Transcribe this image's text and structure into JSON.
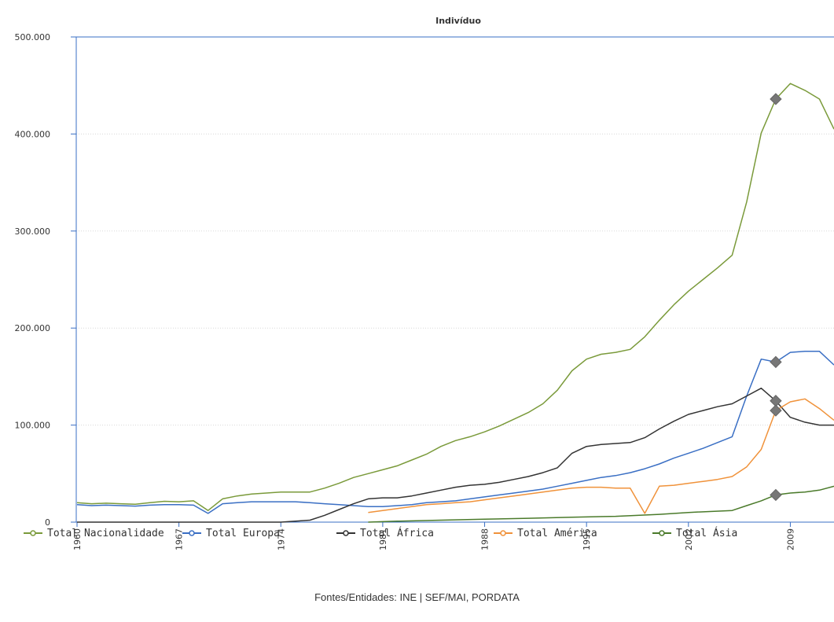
{
  "chart_data": {
    "type": "line",
    "title": "Indivíduo",
    "xlabel": "",
    "ylabel": "",
    "ylim": [
      0,
      500000
    ],
    "xlim": [
      1960,
      2012
    ],
    "y_ticks": [
      0,
      100000,
      200000,
      300000,
      400000,
      500000
    ],
    "y_tick_labels": [
      "0",
      "100.000",
      "200.000",
      "300.000",
      "400.000",
      "500.000"
    ],
    "x_ticks": [
      1960,
      1967,
      1974,
      1981,
      1988,
      1995,
      2002,
      2009
    ],
    "x_tick_labels": [
      "1960",
      "1967",
      "1974",
      "1981",
      "1988",
      "1995",
      "2002",
      "2009"
    ],
    "grid": true,
    "legend_position": "bottom",
    "highlight_year": 2008,
    "series": [
      {
        "name": "Total Nacionalidade",
        "color": "#7a9a3a",
        "points": [
          [
            1960,
            20000
          ],
          [
            1961,
            19000
          ],
          [
            1962,
            19500
          ],
          [
            1963,
            19000
          ],
          [
            1964,
            18500
          ],
          [
            1965,
            20000
          ],
          [
            1966,
            21500
          ],
          [
            1967,
            21000
          ],
          [
            1968,
            22000
          ],
          [
            1969,
            12000
          ],
          [
            1970,
            24000
          ],
          [
            1971,
            27000
          ],
          [
            1972,
            29000
          ],
          [
            1973,
            30000
          ],
          [
            1974,
            31000
          ],
          [
            1975,
            31000
          ],
          [
            1976,
            31000
          ],
          [
            1977,
            35000
          ],
          [
            1978,
            40000
          ],
          [
            1979,
            46000
          ],
          [
            1980,
            50000
          ],
          [
            1981,
            54000
          ],
          [
            1982,
            58000
          ],
          [
            1983,
            64000
          ],
          [
            1984,
            70000
          ],
          [
            1985,
            78000
          ],
          [
            1986,
            84000
          ],
          [
            1987,
            88000
          ],
          [
            1988,
            93000
          ],
          [
            1989,
            99000
          ],
          [
            1990,
            106000
          ],
          [
            1991,
            113000
          ],
          [
            1992,
            122000
          ],
          [
            1993,
            136000
          ],
          [
            1994,
            156000
          ],
          [
            1995,
            168000
          ],
          [
            1996,
            173000
          ],
          [
            1997,
            175000
          ],
          [
            1998,
            178000
          ],
          [
            1999,
            191000
          ],
          [
            2000,
            208000
          ],
          [
            2001,
            224000
          ],
          [
            2002,
            238000
          ],
          [
            2003,
            250000
          ],
          [
            2004,
            262000
          ],
          [
            2005,
            275000
          ],
          [
            2006,
            330000
          ],
          [
            2007,
            401000
          ],
          [
            2008,
            436000
          ],
          [
            2009,
            452000
          ],
          [
            2010,
            445000
          ],
          [
            2011,
            436000
          ],
          [
            2012,
            405000
          ]
        ]
      },
      {
        "name": "Total Europa",
        "color": "#3a6fc4",
        "points": [
          [
            1960,
            18000
          ],
          [
            1961,
            17000
          ],
          [
            1962,
            17500
          ],
          [
            1963,
            17000
          ],
          [
            1964,
            16500
          ],
          [
            1965,
            17500
          ],
          [
            1966,
            18000
          ],
          [
            1967,
            18000
          ],
          [
            1968,
            17500
          ],
          [
            1969,
            9000
          ],
          [
            1970,
            19000
          ],
          [
            1971,
            20000
          ],
          [
            1972,
            21000
          ],
          [
            1973,
            21000
          ],
          [
            1974,
            21000
          ],
          [
            1975,
            21000
          ],
          [
            1976,
            20000
          ],
          [
            1977,
            19000
          ],
          [
            1978,
            18000
          ],
          [
            1979,
            17000
          ],
          [
            1980,
            16000
          ],
          [
            1981,
            16000
          ],
          [
            1982,
            17000
          ],
          [
            1983,
            18000
          ],
          [
            1984,
            20000
          ],
          [
            1985,
            21000
          ],
          [
            1986,
            22000
          ],
          [
            1987,
            24000
          ],
          [
            1988,
            26000
          ],
          [
            1989,
            28000
          ],
          [
            1990,
            30000
          ],
          [
            1991,
            32000
          ],
          [
            1992,
            34000
          ],
          [
            1993,
            37000
          ],
          [
            1994,
            40000
          ],
          [
            1995,
            43000
          ],
          [
            1996,
            46000
          ],
          [
            1997,
            48000
          ],
          [
            1998,
            51000
          ],
          [
            1999,
            55000
          ],
          [
            2000,
            60000
          ],
          [
            2001,
            66000
          ],
          [
            2002,
            71000
          ],
          [
            2003,
            76000
          ],
          [
            2004,
            82000
          ],
          [
            2005,
            88000
          ],
          [
            2006,
            130000
          ],
          [
            2007,
            168000
          ],
          [
            2008,
            165000
          ],
          [
            2009,
            175000
          ],
          [
            2010,
            176000
          ],
          [
            2011,
            176000
          ],
          [
            2012,
            162000
          ]
        ]
      },
      {
        "name": "Total África",
        "color": "#333333",
        "points": [
          [
            1960,
            0
          ],
          [
            1961,
            0
          ],
          [
            1962,
            0
          ],
          [
            1963,
            0
          ],
          [
            1964,
            0
          ],
          [
            1965,
            0
          ],
          [
            1966,
            0
          ],
          [
            1967,
            0
          ],
          [
            1968,
            0
          ],
          [
            1969,
            0
          ],
          [
            1970,
            0
          ],
          [
            1971,
            0
          ],
          [
            1972,
            0
          ],
          [
            1973,
            0
          ],
          [
            1974,
            0
          ],
          [
            1975,
            1000
          ],
          [
            1976,
            2000
          ],
          [
            1977,
            7000
          ],
          [
            1978,
            13000
          ],
          [
            1979,
            19000
          ],
          [
            1980,
            24000
          ],
          [
            1981,
            25000
          ],
          [
            1982,
            25000
          ],
          [
            1983,
            27000
          ],
          [
            1984,
            30000
          ],
          [
            1985,
            33000
          ],
          [
            1986,
            36000
          ],
          [
            1987,
            38000
          ],
          [
            1988,
            39000
          ],
          [
            1989,
            41000
          ],
          [
            1990,
            44000
          ],
          [
            1991,
            47000
          ],
          [
            1992,
            51000
          ],
          [
            1993,
            56000
          ],
          [
            1994,
            71000
          ],
          [
            1995,
            78000
          ],
          [
            1996,
            80000
          ],
          [
            1997,
            81000
          ],
          [
            1998,
            82000
          ],
          [
            1999,
            87000
          ],
          [
            2000,
            96000
          ],
          [
            2001,
            104000
          ],
          [
            2002,
            111000
          ],
          [
            2003,
            115000
          ],
          [
            2004,
            119000
          ],
          [
            2005,
            122000
          ],
          [
            2006,
            130000
          ],
          [
            2007,
            138000
          ],
          [
            2008,
            125000
          ],
          [
            2009,
            108000
          ],
          [
            2010,
            103000
          ],
          [
            2011,
            100000
          ],
          [
            2012,
            100000
          ]
        ]
      },
      {
        "name": "Total América",
        "color": "#f0923a",
        "points": [
          [
            1980,
            10000
          ],
          [
            1981,
            12000
          ],
          [
            1982,
            14000
          ],
          [
            1983,
            16000
          ],
          [
            1984,
            18000
          ],
          [
            1985,
            19000
          ],
          [
            1986,
            20000
          ],
          [
            1987,
            21000
          ],
          [
            1988,
            23000
          ],
          [
            1989,
            25000
          ],
          [
            1990,
            27000
          ],
          [
            1991,
            29000
          ],
          [
            1992,
            31000
          ],
          [
            1993,
            33000
          ],
          [
            1994,
            35000
          ],
          [
            1995,
            36000
          ],
          [
            1996,
            36000
          ],
          [
            1997,
            35000
          ],
          [
            1998,
            35000
          ],
          [
            1999,
            9000
          ],
          [
            2000,
            37000
          ],
          [
            2001,
            38000
          ],
          [
            2002,
            40000
          ],
          [
            2003,
            42000
          ],
          [
            2004,
            44000
          ],
          [
            2005,
            47000
          ],
          [
            2006,
            57000
          ],
          [
            2007,
            75000
          ],
          [
            2008,
            115000
          ],
          [
            2009,
            124000
          ],
          [
            2010,
            127000
          ],
          [
            2011,
            117000
          ],
          [
            2012,
            105000
          ]
        ]
      },
      {
        "name": "Total Ásia",
        "color": "#4a7a2a",
        "points": [
          [
            1980,
            0
          ],
          [
            1982,
            1000
          ],
          [
            1985,
            2000
          ],
          [
            1988,
            3000
          ],
          [
            1991,
            4000
          ],
          [
            1994,
            5000
          ],
          [
            1997,
            6000
          ],
          [
            2000,
            8000
          ],
          [
            2002,
            10000
          ],
          [
            2005,
            12000
          ],
          [
            2006,
            17000
          ],
          [
            2007,
            22000
          ],
          [
            2008,
            28000
          ],
          [
            2009,
            30000
          ],
          [
            2010,
            31000
          ],
          [
            2011,
            33000
          ],
          [
            2012,
            37000
          ]
        ]
      }
    ]
  },
  "legend_items": [
    "Total Nacionalidade",
    "Total Europa",
    "Total África",
    "Total América",
    "Total Ásia"
  ],
  "source": "Fontes/Entidades: INE | SEF/MAI, PORDATA"
}
